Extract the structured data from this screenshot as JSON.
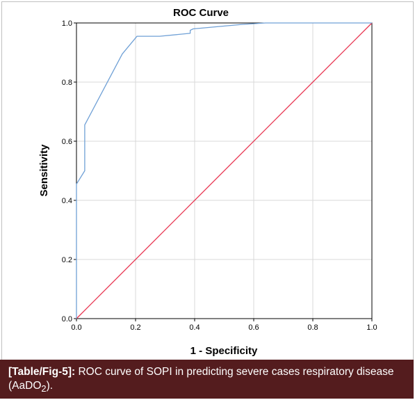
{
  "figure": {
    "caption_label": "[Table/Fig-5]:",
    "caption_text_1": " ROC curve of SOPI in predicting severe cases respiratory disease (AaDO",
    "caption_subscript": "2",
    "caption_text_2": ")."
  },
  "colors": {
    "roc_line": "#6fa0d6",
    "reference_line": "#e8334f",
    "grid": "#d9d9d9",
    "caption_bg": "#541c1e"
  },
  "chart_data": {
    "type": "line",
    "title": "ROC Curve",
    "xlabel": "1 - Specificity",
    "ylabel": "Sensitivity",
    "xlim": [
      0.0,
      1.0
    ],
    "ylim": [
      0.0,
      1.0
    ],
    "x_ticks": [
      "0.0",
      "0.2",
      "0.4",
      "0.6",
      "0.8",
      "1.0"
    ],
    "y_ticks": [
      "0.0",
      "0.2",
      "0.4",
      "0.6",
      "0.8",
      "1.0"
    ],
    "grid": true,
    "legend": "none",
    "series": [
      {
        "key": "roc",
        "x": [
          0.0,
          0.0,
          0.028,
          0.028,
          0.028,
          0.155,
          0.205,
          0.282,
          0.385,
          0.385,
          0.395,
          0.56,
          0.64,
          0.64,
          1.0
        ],
        "y": [
          0.0,
          0.455,
          0.5,
          0.545,
          0.655,
          0.895,
          0.955,
          0.955,
          0.965,
          0.975,
          0.98,
          0.995,
          1.0,
          1.0,
          1.0
        ]
      },
      {
        "key": "reference",
        "x": [
          0.0,
          1.0
        ],
        "y": [
          0.0,
          1.0
        ]
      }
    ]
  }
}
